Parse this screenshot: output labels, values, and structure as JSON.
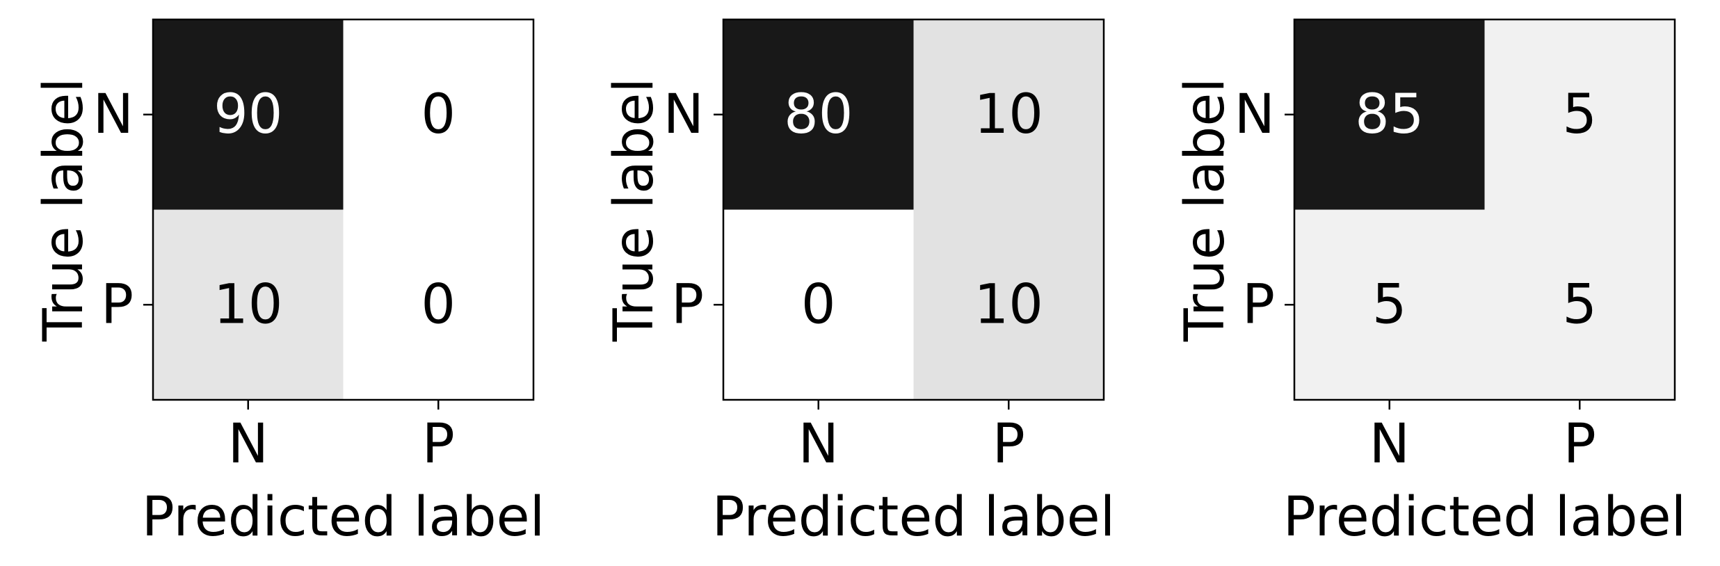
{
  "chart_data": [
    {
      "type": "heatmap",
      "xlabel": "Predicted label",
      "ylabel": "True label",
      "x_ticks": [
        "N",
        "P"
      ],
      "y_ticks": [
        "N",
        "P"
      ],
      "values": [
        [
          90,
          0
        ],
        [
          10,
          0
        ]
      ],
      "colormap": "greys",
      "vmin": 0,
      "vmax": 90
    },
    {
      "type": "heatmap",
      "xlabel": "Predicted label",
      "ylabel": "True label",
      "x_ticks": [
        "N",
        "P"
      ],
      "y_ticks": [
        "N",
        "P"
      ],
      "values": [
        [
          80,
          10
        ],
        [
          0,
          10
        ]
      ],
      "colormap": "greys",
      "vmin": 0,
      "vmax": 80
    },
    {
      "type": "heatmap",
      "xlabel": "Predicted label",
      "ylabel": "True label",
      "x_ticks": [
        "N",
        "P"
      ],
      "y_ticks": [
        "N",
        "P"
      ],
      "values": [
        [
          85,
          5
        ],
        [
          5,
          5
        ]
      ],
      "colormap": "greys",
      "vmin": 0,
      "vmax": 85
    }
  ]
}
